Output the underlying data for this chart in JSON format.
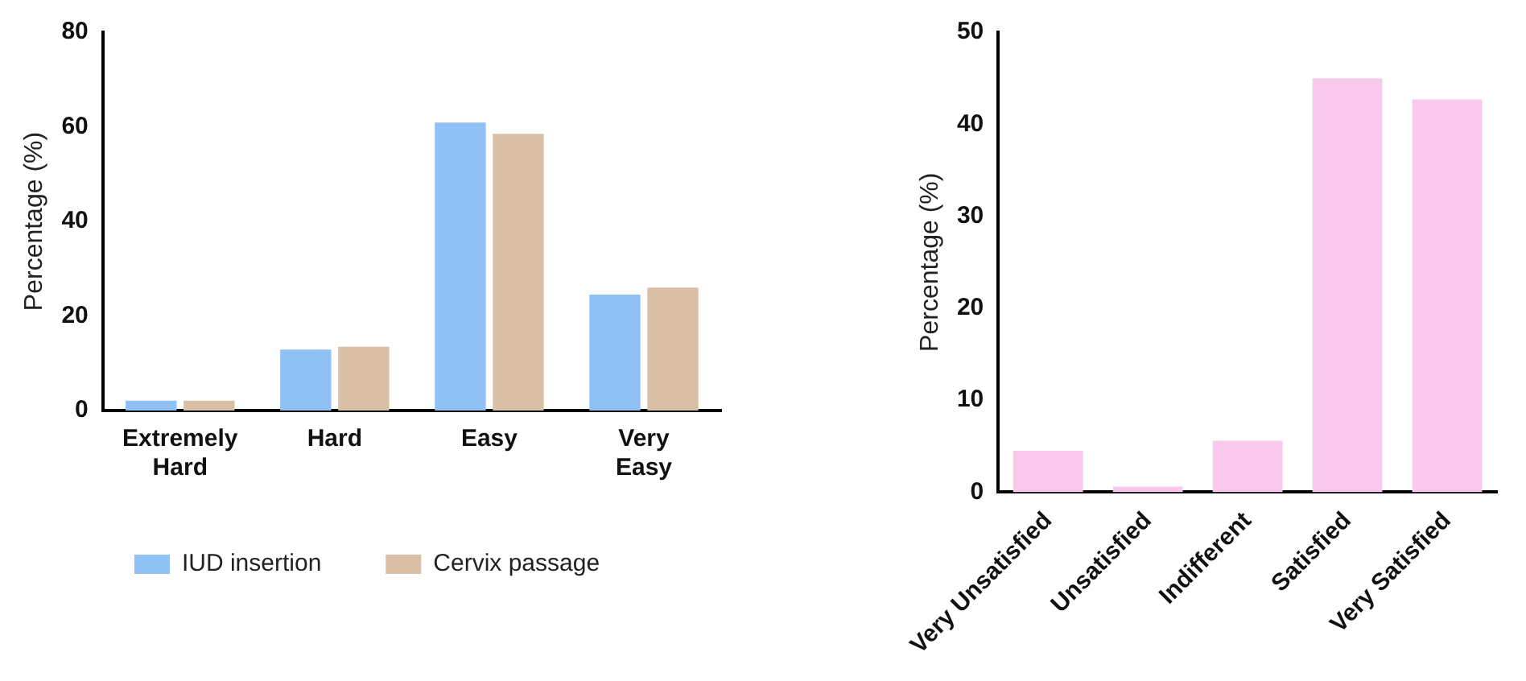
{
  "chart_data": [
    {
      "type": "bar",
      "categories": [
        "Extremely Hard",
        "Hard",
        "Easy",
        "Very Easy"
      ],
      "ylabel": "Percentage (%)",
      "ylim": [
        0,
        80
      ],
      "yticks": [
        0,
        20,
        40,
        60,
        80
      ],
      "legend": "bottom",
      "series": [
        {
          "name": "IUD insertion",
          "color": "#8fc1f5",
          "values": [
            2.1,
            12.9,
            60.9,
            24.5
          ]
        },
        {
          "name": "Cervix passage",
          "color": "#d9bfa6",
          "values": [
            2.1,
            13.5,
            58.5,
            26.0
          ]
        }
      ]
    },
    {
      "type": "bar",
      "categories": [
        "Very Unsatisfied",
        "Unsatisfied",
        "Indifferent",
        "Satisfied",
        "Very Satisfied"
      ],
      "ylabel": "Percentage (%)",
      "ylim": [
        0,
        50
      ],
      "yticks": [
        0,
        10,
        20,
        30,
        40,
        50
      ],
      "series": [
        {
          "color": "#f9c9ec",
          "values": [
            4.5,
            0.6,
            5.6,
            45.0,
            42.7
          ]
        }
      ]
    }
  ]
}
